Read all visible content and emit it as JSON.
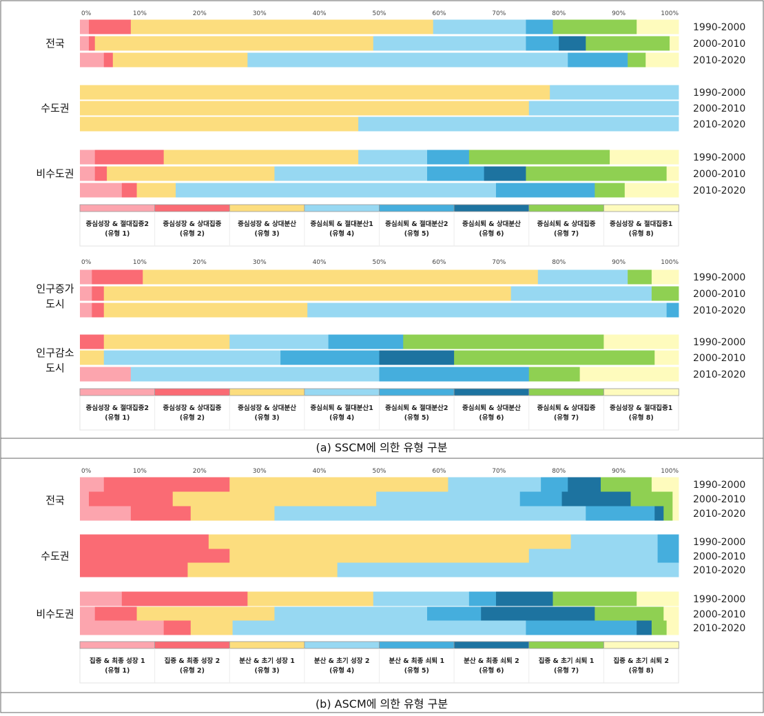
{
  "colors": {
    "t1": "#fca5ae",
    "t2": "#fa6b74",
    "t3": "#fcdd7e",
    "t4": "#97d8f2",
    "t5": "#45aedd",
    "t6": "#1d73a0",
    "t7": "#8fd052",
    "t8": "#fefbbd"
  },
  "axis_ticks": [
    "0%",
    "10%",
    "20%",
    "30%",
    "40%",
    "50%",
    "60%",
    "70%",
    "80%",
    "90%",
    "100%"
  ],
  "year_labels": [
    "1990-2000",
    "2000-2010",
    "2010-2020"
  ],
  "captions": {
    "a": "(a) SSCM에 의한 유형 구분",
    "b": "(b) ASCM에 의한 유형 구분"
  },
  "legend_sscm": [
    {
      "line1": "중심성장 & 절대집중2",
      "line2": "(유형 1)"
    },
    {
      "line1": "중심성장 & 상대집중",
      "line2": "(유형 2)"
    },
    {
      "line1": "중심성장 & 상대분산",
      "line2": "(유형 3)"
    },
    {
      "line1": "중심쇠퇴 & 절대분산1",
      "line2": "(유형 4)"
    },
    {
      "line1": "중심쇠퇴 & 절대분산2",
      "line2": "(유형 5)"
    },
    {
      "line1": "중심쇠퇴 & 상대분산",
      "line2": "(유형 6)"
    },
    {
      "line1": "중심쇠퇴 & 상대집중",
      "line2": "(유형 7)"
    },
    {
      "line1": "중심성장 & 절대집중1",
      "line2": "(유형 8)"
    }
  ],
  "legend_ascm": [
    {
      "line1": "집중 & 최종 성장 1",
      "line2": "(유형 1)"
    },
    {
      "line1": "집중 & 최종 성장 2",
      "line2": "(유형 2)"
    },
    {
      "line1": "분산 & 초기 성장 1",
      "line2": "(유형 3)"
    },
    {
      "line1": "분산 & 초기 성장 2",
      "line2": "(유형 4)"
    },
    {
      "line1": "분산 & 최종 쇠퇴 1",
      "line2": "(유형 5)"
    },
    {
      "line1": "분산 & 최종 쇠퇴 2",
      "line2": "(유형 6)"
    },
    {
      "line1": "집중 & 초기 쇠퇴 1",
      "line2": "(유형 7)"
    },
    {
      "line1": "집중 & 초기 쇠퇴 2",
      "line2": "(유형 8)"
    }
  ],
  "chart_data": [
    {
      "type": "bar",
      "orientation": "horizontal-stacked-100",
      "panel": "a-top",
      "xlim": [
        0,
        100
      ],
      "series_colors": [
        "#fca5ae",
        "#fa6b74",
        "#fcdd7e",
        "#97d8f2",
        "#45aedd",
        "#1d73a0",
        "#8fd052",
        "#fefbbd"
      ],
      "groups": [
        {
          "name": "전국",
          "rows": [
            {
              "period": "1990-2000",
              "values": [
                1.5,
                7,
                50.5,
                15.5,
                4.5,
                0,
                14,
                7
              ]
            },
            {
              "period": "2000-2010",
              "values": [
                1.5,
                1,
                46.5,
                25.5,
                5.5,
                4.5,
                14,
                1.5
              ]
            },
            {
              "period": "2010-2020",
              "values": [
                4,
                1.5,
                22.5,
                53.5,
                10,
                0,
                3,
                5.5
              ]
            }
          ]
        },
        {
          "name": "수도권",
          "rows": [
            {
              "period": "1990-2000",
              "values": [
                0,
                0,
                78.5,
                21.5,
                0,
                0,
                0,
                0
              ]
            },
            {
              "period": "2000-2010",
              "values": [
                0,
                0,
                75,
                25,
                0,
                0,
                0,
                0
              ]
            },
            {
              "period": "2010-2020",
              "values": [
                0,
                0,
                46.5,
                53.5,
                0,
                0,
                0,
                0
              ]
            }
          ]
        },
        {
          "name": "비수도권",
          "rows": [
            {
              "period": "1990-2000",
              "values": [
                2.5,
                11.5,
                32.5,
                11.5,
                7,
                0,
                23.5,
                11.5
              ]
            },
            {
              "period": "2000-2010",
              "values": [
                2.5,
                2,
                28,
                25.5,
                9.5,
                7,
                23.5,
                2
              ]
            },
            {
              "period": "2010-2020",
              "values": [
                7,
                2.5,
                6.5,
                53.5,
                16.5,
                0,
                5,
                9
              ]
            }
          ]
        }
      ]
    },
    {
      "type": "bar",
      "orientation": "horizontal-stacked-100",
      "panel": "a-bottom",
      "xlim": [
        0,
        100
      ],
      "series_colors": [
        "#fca5ae",
        "#fa6b74",
        "#fcdd7e",
        "#97d8f2",
        "#45aedd",
        "#1d73a0",
        "#8fd052",
        "#fefbbd"
      ],
      "groups": [
        {
          "name": "인구증가\n도시",
          "rows": [
            {
              "period": "1990-2000",
              "values": [
                2,
                8.5,
                66,
                15,
                0,
                0,
                4,
                4.5
              ]
            },
            {
              "period": "2000-2010",
              "values": [
                2,
                2,
                68,
                23.5,
                0,
                0,
                4.5,
                0
              ]
            },
            {
              "period": "2010-2020",
              "values": [
                2,
                2,
                34,
                60,
                2,
                0,
                0,
                0
              ]
            }
          ]
        },
        {
          "name": "인구감소\n도시",
          "rows": [
            {
              "period": "1990-2000",
              "values": [
                0,
                4,
                21,
                16.5,
                12.5,
                0,
                33.5,
                12.5
              ]
            },
            {
              "period": "2000-2010",
              "values": [
                0,
                0,
                4,
                29.5,
                16.5,
                12.5,
                33.5,
                4
              ]
            },
            {
              "period": "2010-2020",
              "values": [
                8.5,
                0,
                0,
                41.5,
                25,
                0,
                8.5,
                16.5
              ]
            }
          ]
        }
      ]
    },
    {
      "type": "bar",
      "orientation": "horizontal-stacked-100",
      "panel": "b",
      "xlim": [
        0,
        100
      ],
      "series_colors": [
        "#fca5ae",
        "#fa6b74",
        "#fcdd7e",
        "#97d8f2",
        "#45aedd",
        "#1d73a0",
        "#8fd052",
        "#fefbbd"
      ],
      "groups": [
        {
          "name": "전국",
          "rows": [
            {
              "period": "1990-2000",
              "values": [
                4,
                21,
                36.5,
                15.5,
                4.5,
                5.5,
                8.5,
                4.5
              ]
            },
            {
              "period": "2000-2010",
              "values": [
                1.5,
                14,
                34,
                24,
                7,
                11.5,
                7,
                1
              ]
            },
            {
              "period": "2010-2020",
              "values": [
                8.5,
                10,
                14,
                52,
                11.5,
                1.5,
                1.5,
                1
              ]
            }
          ]
        },
        {
          "name": "수도권",
          "rows": [
            {
              "period": "1990-2000",
              "values": [
                0,
                21.5,
                60.5,
                14.5,
                3.5,
                0,
                0,
                0
              ]
            },
            {
              "period": "2000-2010",
              "values": [
                0,
                25,
                50,
                21.5,
                3.5,
                0,
                0,
                0
              ]
            },
            {
              "period": "2010-2020",
              "values": [
                0,
                18,
                25,
                57,
                0,
                0,
                0,
                0
              ]
            }
          ]
        },
        {
          "name": "비수도권",
          "rows": [
            {
              "period": "1990-2000",
              "values": [
                7,
                21,
                21,
                16,
                4.5,
                9.5,
                14,
                7
              ]
            },
            {
              "period": "2000-2010",
              "values": [
                2.5,
                7,
                23,
                25.5,
                9,
                19,
                11.5,
                2.5
              ]
            },
            {
              "period": "2010-2020",
              "values": [
                14,
                4.5,
                7,
                49,
                18.5,
                2.5,
                2.5,
                2
              ]
            }
          ]
        }
      ]
    }
  ]
}
